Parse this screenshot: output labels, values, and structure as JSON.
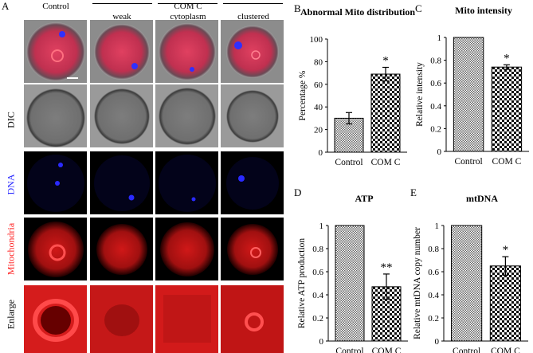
{
  "panel_a": {
    "letter": "A",
    "columns": [
      "Control",
      "weak",
      "COM C\ncytoplasm",
      "clustered"
    ],
    "rows": [
      "DIC",
      "DNA",
      "Mitochondria",
      "Enlarge"
    ],
    "colors": {
      "dna": "#2222ff",
      "mito": "#ff2020",
      "dic": "#888888"
    }
  },
  "chart_data": [
    {
      "panel": "B",
      "type": "bar",
      "title": "Abnormal Mito distribution",
      "xlabel": "",
      "ylabel": "Percentage %",
      "categories": [
        "Control",
        "COM C"
      ],
      "values": [
        30,
        69
      ],
      "errors": [
        5,
        6
      ],
      "ylim": [
        0,
        100
      ],
      "yticks": [
        "0",
        "20",
        "40",
        "60",
        "80",
        "100"
      ],
      "significance": [
        "",
        "*"
      ]
    },
    {
      "panel": "C",
      "type": "bar",
      "title": "Mito intensity",
      "xlabel": "",
      "ylabel": "Relative intensity",
      "categories": [
        "Control",
        "COM C"
      ],
      "values": [
        1.0,
        0.74
      ],
      "errors": [
        0,
        0.02
      ],
      "ylim": [
        0,
        1
      ],
      "yticks": [
        "0",
        "0.2",
        "0.4",
        "0.6",
        "0.8",
        "1"
      ],
      "significance": [
        "",
        "*"
      ]
    },
    {
      "panel": "D",
      "type": "bar",
      "title": "ATP",
      "xlabel": "",
      "ylabel": "Relative ATP production",
      "categories": [
        "Control",
        "COM C"
      ],
      "values": [
        1.0,
        0.47
      ],
      "errors": [
        0,
        0.11
      ],
      "ylim": [
        0,
        1
      ],
      "yticks": [
        "0",
        "0.2",
        "0.4",
        "0.6",
        "0.8",
        "1"
      ],
      "significance": [
        "",
        "**"
      ]
    },
    {
      "panel": "E",
      "type": "bar",
      "title": "mtDNA",
      "xlabel": "",
      "ylabel": "Relative mtDNA copy number",
      "categories": [
        "Control",
        "COM C"
      ],
      "values": [
        1.0,
        0.65
      ],
      "errors": [
        0,
        0.08
      ],
      "ylim": [
        0,
        1
      ],
      "yticks": [
        "0",
        "0.2",
        "0.4",
        "0.6",
        "0.8",
        "1"
      ],
      "significance": [
        "",
        "*"
      ]
    }
  ]
}
